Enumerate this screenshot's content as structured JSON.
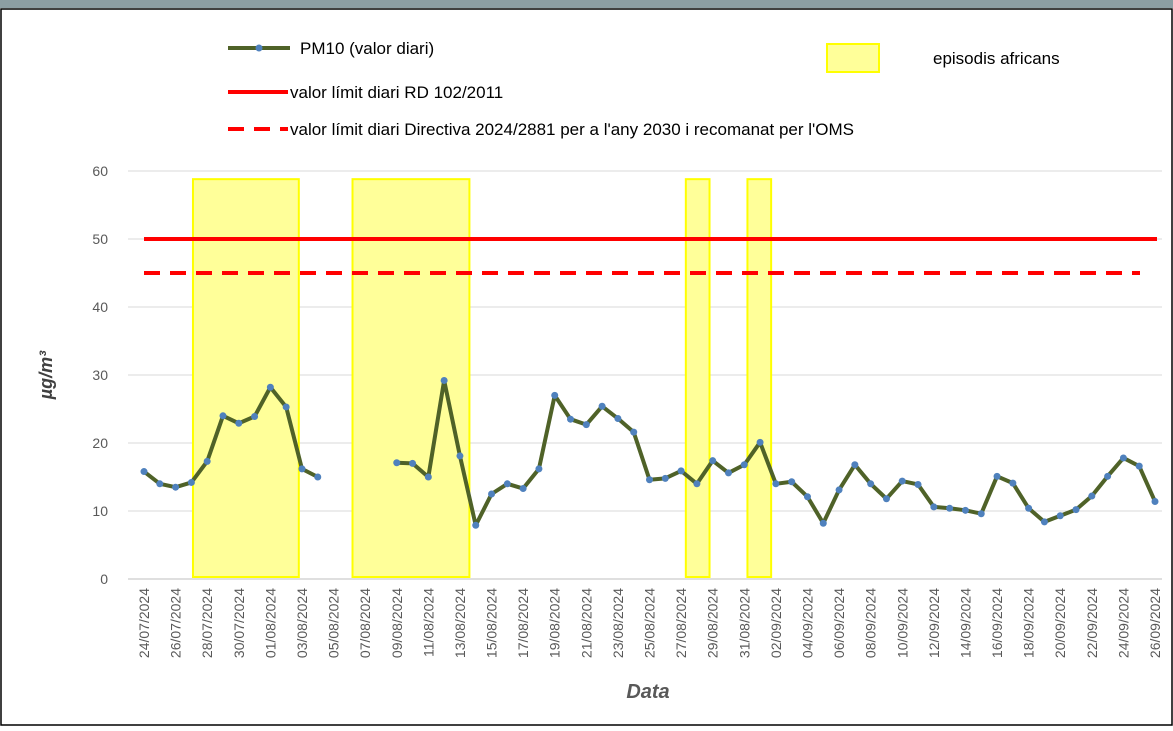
{
  "chart_data": {
    "type": "line",
    "x_label": "Data",
    "y_label": "µg/m³",
    "categories": [
      "24/07/2024",
      null,
      "26/07/2024",
      null,
      "28/07/2024",
      null,
      "30/07/2024",
      null,
      "01/08/2024",
      null,
      "03/08/2024",
      null,
      "05/08/2024",
      null,
      "07/08/2024",
      null,
      "09/08/2024",
      null,
      "11/08/2024",
      null,
      "13/08/2024",
      null,
      "15/08/2024",
      null,
      "17/08/2024",
      null,
      "19/08/2024",
      null,
      "21/08/2024",
      null,
      "23/08/2024",
      null,
      "25/08/2024",
      null,
      "27/08/2024",
      null,
      "29/08/2024",
      null,
      "31/08/2024",
      null,
      "02/09/2024",
      null,
      "04/09/2024",
      null,
      "06/09/2024",
      null,
      "08/09/2024",
      null,
      "10/09/2024",
      null,
      "12/09/2024",
      null,
      "14/09/2024",
      null,
      "16/09/2024",
      null,
      "18/09/2024",
      null,
      "20/09/2024",
      null,
      "22/09/2024",
      null,
      "24/09/2024",
      null,
      "26/09/2024"
    ],
    "series": [
      {
        "name": "PM10 (valor diari)",
        "color": "#4f6228",
        "marker_color": "#4f81bd",
        "values": [
          15.8,
          14.0,
          13.5,
          14.2,
          17.3,
          24.0,
          22.9,
          23.9,
          28.2,
          25.3,
          16.2,
          15.0,
          null,
          null,
          null,
          null,
          17.1,
          17.0,
          15.0,
          29.2,
          18.1,
          7.9,
          12.5,
          14.0,
          13.3,
          16.2,
          27.0,
          23.5,
          22.7,
          25.4,
          23.6,
          21.6,
          14.6,
          14.8,
          15.9,
          14.0,
          17.4,
          15.6,
          16.8,
          20.1,
          14.0,
          14.3,
          12.1,
          8.2,
          13.1,
          16.8,
          14.0,
          11.8,
          14.4,
          13.9,
          10.6,
          10.4,
          10.1,
          9.6,
          15.1,
          14.1,
          10.4,
          8.4,
          9.3,
          10.2,
          12.2,
          15.1,
          17.8,
          16.6,
          11.4
        ]
      }
    ],
    "reference_lines": [
      {
        "name": "valor límit diari RD 102/2011",
        "value": 50,
        "color": "#ff0000",
        "style": "solid"
      },
      {
        "name": "valor límit diari Directiva 2024/2881 per a l'any 2030 i recomanat per l'OMS",
        "value": 45,
        "color": "#ff0000",
        "style": "dashed"
      }
    ],
    "episodes": {
      "name": "episodis africans",
      "color": "#ffff99",
      "border": "#ffff00",
      "top": 58.8,
      "ranges": [
        [
          3.1,
          9.8
        ],
        [
          13.2,
          20.6
        ],
        [
          34.3,
          35.8
        ],
        [
          38.2,
          39.7
        ]
      ]
    },
    "ylim": [
      0,
      60
    ],
    "yticks": [
      0,
      10,
      20,
      30,
      40,
      50,
      60
    ],
    "grid": true
  }
}
